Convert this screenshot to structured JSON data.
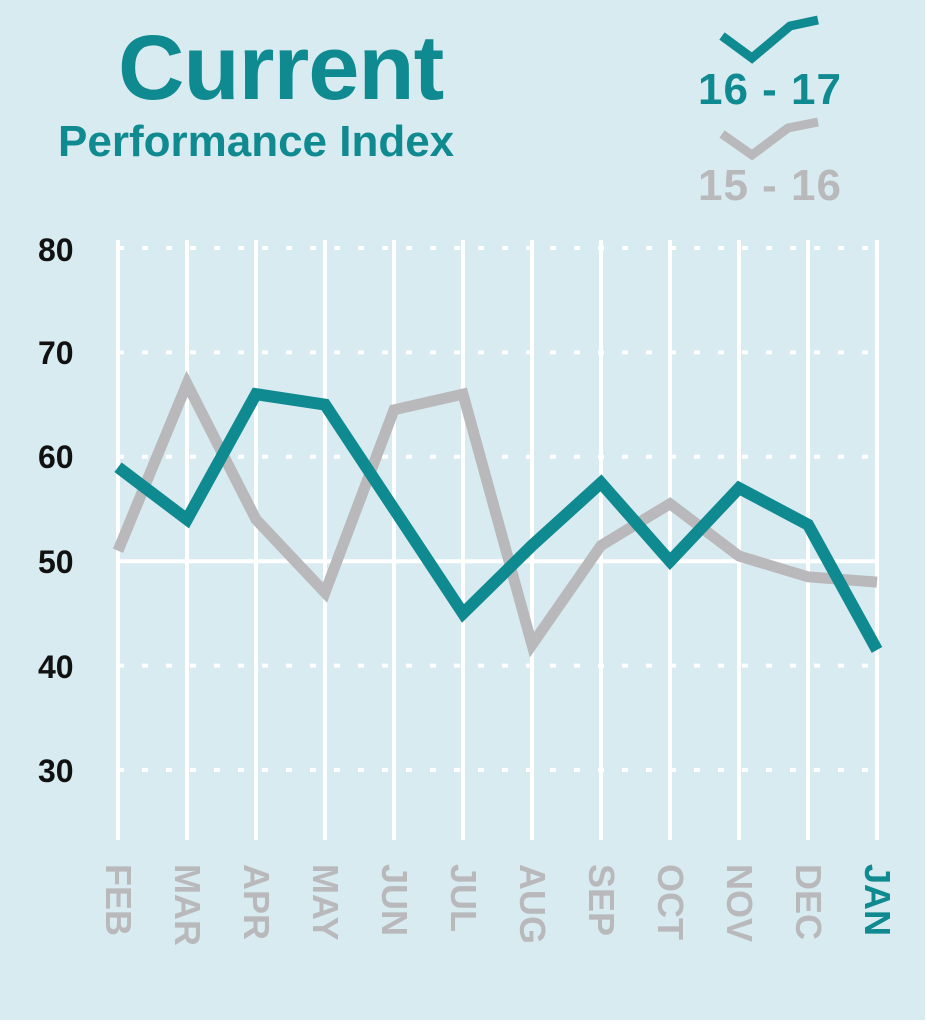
{
  "chart_data": {
    "type": "line",
    "title": "Current",
    "subtitle": "Performance Index",
    "categories": [
      "FEB",
      "MAR",
      "APR",
      "MAY",
      "JUN",
      "JUL",
      "AUG",
      "SEP",
      "OCT",
      "NOV",
      "DEC",
      "JAN"
    ],
    "highlighted_category": "JAN",
    "series": [
      {
        "name": "16 - 17",
        "color": "#0f8a90",
        "values": [
          59,
          54,
          66,
          65,
          55,
          45,
          51.5,
          57.5,
          50,
          57,
          53.5,
          41.5
        ]
      },
      {
        "name": "15 - 16",
        "color": "#b9b9bc",
        "values": [
          51,
          67,
          54,
          47,
          64.5,
          66,
          42,
          51.5,
          55.5,
          50.5,
          48.5,
          48
        ]
      }
    ],
    "y_ticks": [
      "80",
      "70",
      "60",
      "50",
      "40",
      "30"
    ],
    "ylim": [
      25,
      80
    ],
    "reference_line": 50,
    "grid": true,
    "legend_position": "top-right",
    "background_color": "#d8ebf0",
    "tick_label_color": "#b9b9bc"
  }
}
